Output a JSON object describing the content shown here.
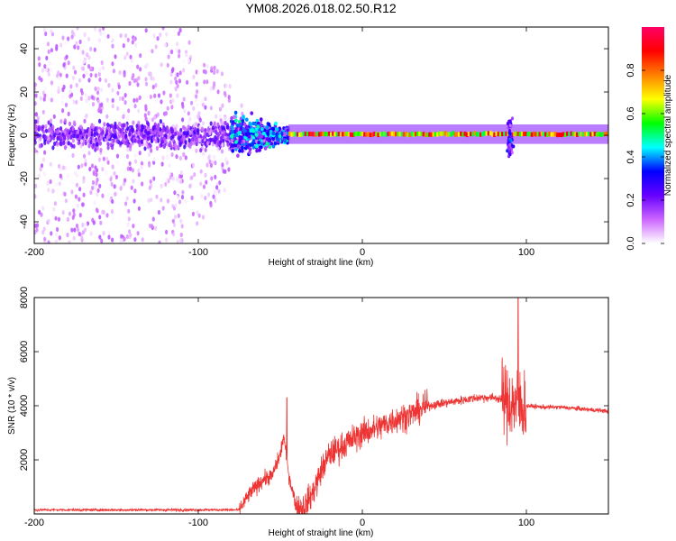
{
  "title": "YM08.2026.018.02.50.R12",
  "chart_data": [
    {
      "type": "heatmap",
      "xlabel": "Height of straight line (km)",
      "ylabel": "Frequency (Hz)",
      "xlim": [
        -200,
        150
      ],
      "ylim": [
        -50,
        50
      ],
      "xticks": [
        "-200",
        "-100",
        "0",
        "100"
      ],
      "yticks": [
        "-40",
        "-20",
        "0",
        "20",
        "40"
      ],
      "colorbar": {
        "label": "Normalized spectral amplitude",
        "range": [
          0,
          1
        ],
        "ticks": [
          "0.0",
          "0.2",
          "0.4",
          "0.6",
          "0.8"
        ],
        "colors": [
          "#ffffff",
          "#cc66ff",
          "#6600ff",
          "#0000ff",
          "#00ffff",
          "#00ff00",
          "#ffff00",
          "#ff8000",
          "#ff0000",
          "#ff0066"
        ]
      },
      "regions": [
        {
          "x": [
            -200,
            -80
          ],
          "freq_spread_hz": [
            -50,
            50
          ],
          "amplitude": [
            0.0,
            0.3
          ],
          "note_center_band_hz": [
            -8,
            8
          ]
        },
        {
          "x": [
            -80,
            -45
          ],
          "freq_spread_hz": [
            -15,
            15
          ],
          "amplitude": [
            0.1,
            0.5
          ]
        },
        {
          "x": [
            -45,
            150
          ],
          "freq_center_hz": 0.5,
          "freq_width_hz": 3,
          "amplitude": [
            0.5,
            1.0
          ]
        }
      ],
      "feature_at_km": {
        "x": 90,
        "freq_range_hz": [
          -10,
          8
        ]
      }
    },
    {
      "type": "line",
      "xlabel": "Height of straight line (km)",
      "ylabel": "SNR (10 * v/v)",
      "xlim": [
        -200,
        150
      ],
      "ylim": [
        0,
        8000
      ],
      "xticks": [
        "-200",
        "-100",
        "0",
        "100"
      ],
      "yticks": [
        "2000",
        "4000",
        "6000",
        "8000"
      ],
      "color": "#ee3333",
      "trend": {
        "x": [
          -200,
          -75,
          -68,
          -60,
          -55,
          -50,
          -48,
          -45,
          -40,
          -35,
          -30,
          -25,
          -20,
          -10,
          0,
          10,
          20,
          30,
          40,
          50,
          60,
          70,
          80,
          85,
          90,
          95,
          98,
          100,
          110,
          120,
          130,
          140,
          150
        ],
        "y": [
          150,
          150,
          800,
          1300,
          1400,
          2200,
          2900,
          1500,
          200,
          300,
          800,
          1600,
          2200,
          2600,
          3000,
          3200,
          3500,
          3700,
          4000,
          4100,
          4200,
          4300,
          4300,
          4250,
          4100,
          4050,
          4000,
          4000,
          3950,
          3950,
          3900,
          3850,
          3800
        ]
      },
      "peaks": [
        {
          "x": -46,
          "y": 4300
        },
        {
          "x": 95,
          "y": 8000
        }
      ]
    }
  ]
}
